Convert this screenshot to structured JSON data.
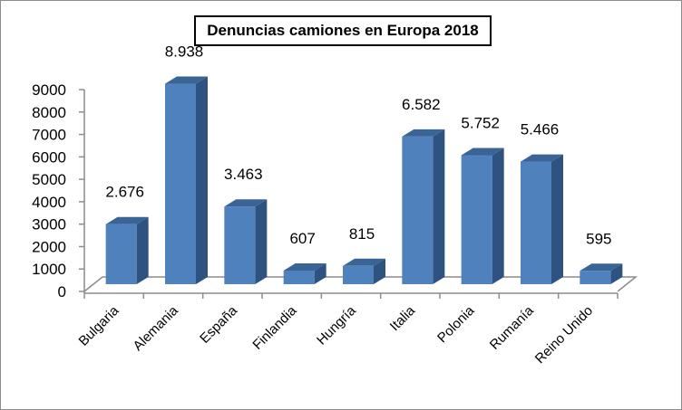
{
  "chart_data": {
    "type": "bar",
    "style": "3d-column",
    "title": "Denuncias camiones en Europa 2018",
    "xlabel": "",
    "ylabel": "",
    "categories": [
      "Bulgaria",
      "Alemania",
      "España",
      "Finlandia",
      "Hungría",
      "Italia",
      "Polonia",
      "Rumanía",
      "Reino Unido"
    ],
    "values": [
      2676,
      8938,
      3463,
      607,
      815,
      6582,
      5752,
      5466,
      595
    ],
    "data_labels": [
      "2.676",
      "8.938",
      "3.463",
      "607",
      "815",
      "6.582",
      "5.752",
      "5.466",
      "595"
    ],
    "ylim": [
      0,
      9000
    ],
    "yticks": [
      0,
      1000,
      2000,
      3000,
      4000,
      5000,
      6000,
      7000,
      8000,
      9000
    ],
    "ytick_labels": [
      "0",
      "1000",
      "2000",
      "3000",
      "4000",
      "5000",
      "6000",
      "7000",
      "8000",
      "9000"
    ],
    "grid": false,
    "legend": "none",
    "colors": {
      "bar_front": "#4f81bd",
      "bar_side": "#2f5381",
      "bar_top": "#3a6396",
      "axis": "#8c8c8c"
    }
  }
}
